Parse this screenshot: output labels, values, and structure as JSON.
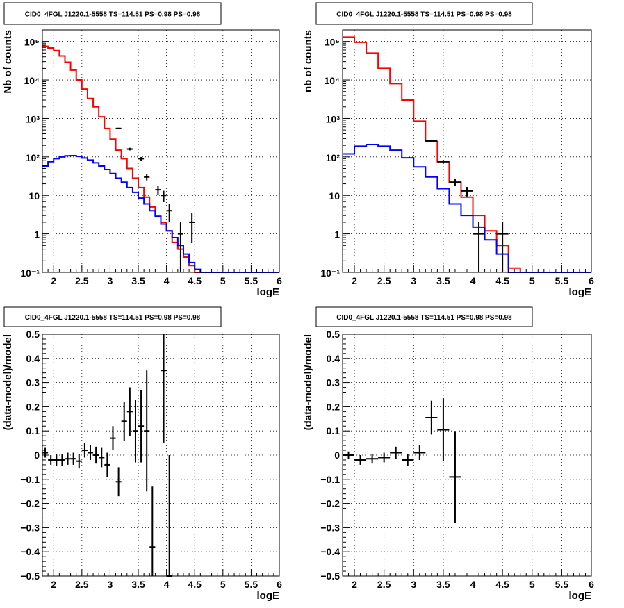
{
  "chart_data": [
    {
      "type": "line",
      "title": "CID0_4FGL J1220.1-5558 TS=114.51 PS=0.98 PS=0.98",
      "xlabel": "logE",
      "ylabel": "Nb of counts",
      "xlim": [
        1.8,
        6.0
      ],
      "ylim": [
        0.1,
        200000
      ],
      "log_y": true,
      "grid": true,
      "x_ticks": [
        "2",
        "2.5",
        "3",
        "3.5",
        "4",
        "4.5",
        "5",
        "5.5",
        "6"
      ],
      "y_ticks": [
        "10⁻¹",
        "1",
        "10",
        "10²",
        "10³",
        "10⁴",
        "10⁵"
      ],
      "series": [
        {
          "kind": "step",
          "color": "#ff0000",
          "edges": [
            1.8,
            1.9,
            2.0,
            2.1,
            2.2,
            2.3,
            2.4,
            2.5,
            2.6,
            2.7,
            2.8,
            2.9,
            3.0,
            3.1,
            3.2,
            3.3,
            3.4,
            3.5,
            3.6,
            3.7,
            3.8,
            3.9,
            4.0,
            4.1,
            4.2,
            4.3,
            4.4,
            4.5,
            4.6,
            4.7,
            4.8,
            4.9,
            5.0,
            5.1,
            5.2,
            5.3,
            5.4,
            5.5,
            5.6,
            5.7,
            5.8,
            5.9,
            6.0
          ],
          "values": [
            75000,
            68000,
            58000,
            42000,
            29000,
            18000,
            10000,
            5800,
            3300,
            2000,
            1100,
            550,
            290,
            150,
            90,
            50,
            28,
            16,
            9,
            5,
            3,
            2,
            1.2,
            0.6,
            0.4,
            0.25,
            0.15,
            0.1,
            0.1,
            0.1,
            0.1,
            0.1,
            0.1,
            0.1,
            0.1,
            0.1,
            0.1,
            0.1,
            0.1,
            0.1,
            0.1,
            0.1
          ]
        },
        {
          "kind": "step",
          "color": "#0000ff",
          "edges": [
            1.8,
            1.9,
            2.0,
            2.1,
            2.2,
            2.3,
            2.4,
            2.5,
            2.6,
            2.7,
            2.8,
            2.9,
            3.0,
            3.1,
            3.2,
            3.3,
            3.4,
            3.5,
            3.6,
            3.7,
            3.8,
            3.9,
            4.0,
            4.1,
            4.2,
            4.3,
            4.4,
            4.5,
            4.6,
            4.7,
            4.8,
            4.9,
            5.0,
            5.1,
            5.2,
            5.3,
            5.4,
            5.5,
            5.6,
            5.7,
            5.8,
            5.9,
            6.0
          ],
          "values": [
            58,
            75,
            90,
            100,
            107,
            108,
            103,
            94,
            83,
            70,
            58,
            47,
            37,
            28,
            22,
            16,
            12,
            8.5,
            6,
            4,
            2.8,
            1.8,
            1.2,
            0.8,
            0.5,
            0.3,
            0.18,
            0.12,
            0.1,
            0.1,
            0.1,
            0.1,
            0.1,
            0.1,
            0.1,
            0.1,
            0.1,
            0.1,
            0.1,
            0.1,
            0.1,
            0.1
          ]
        },
        {
          "kind": "points",
          "color": "#000000",
          "x": [
            3.15,
            3.35,
            3.55,
            3.65,
            3.85,
            3.95,
            4.05,
            4.25,
            4.45
          ],
          "y": [
            550,
            160,
            90,
            30,
            14,
            10,
            4,
            1,
            2
          ],
          "x_err": 0.05
        }
      ]
    },
    {
      "type": "line",
      "title": "CID0_4FGL J1220.1-5558 TS=114.51 PS=0.98 PS=0.98",
      "xlabel": "logE",
      "ylabel": "nb of counts",
      "xlim": [
        1.8,
        6.0
      ],
      "ylim": [
        0.1,
        200000
      ],
      "log_y": true,
      "grid": true,
      "x_ticks": [
        "2",
        "2.5",
        "3",
        "3.5",
        "4",
        "4.5",
        "5",
        "5.5",
        "6"
      ],
      "y_ticks": [
        "10⁻¹",
        "1",
        "10",
        "10²",
        "10³",
        "10⁴",
        "10⁵"
      ],
      "series": [
        {
          "kind": "step",
          "color": "#ff0000",
          "edges": [
            1.8,
            2.0,
            2.2,
            2.4,
            2.6,
            2.8,
            3.0,
            3.2,
            3.4,
            3.6,
            3.8,
            4.0,
            4.2,
            4.4,
            4.6,
            4.8,
            5.0,
            5.2,
            5.4,
            5.6,
            5.8,
            6.0
          ],
          "values": [
            130000,
            95000,
            50000,
            20000,
            8000,
            3000,
            850,
            250,
            75,
            22,
            9,
            3,
            1.2,
            0.5,
            0.13,
            0.1,
            0.1,
            0.1,
            0.1,
            0.1,
            0.1
          ]
        },
        {
          "kind": "step",
          "color": "#0000ff",
          "edges": [
            1.8,
            2.0,
            2.2,
            2.4,
            2.6,
            2.8,
            3.0,
            3.2,
            3.4,
            3.6,
            3.8,
            4.0,
            4.2,
            4.4,
            4.6,
            4.8,
            5.0,
            5.2,
            5.4,
            5.6,
            5.8,
            6.0
          ],
          "values": [
            120,
            190,
            210,
            190,
            150,
            95,
            55,
            30,
            15,
            6,
            3,
            1.5,
            0.7,
            0.3,
            0.1,
            0.1,
            0.1,
            0.1,
            0.1,
            0.1,
            0.1
          ]
        },
        {
          "kind": "points",
          "color": "#000000",
          "x": [
            3.3,
            3.5,
            3.7,
            3.9,
            4.1,
            4.5
          ],
          "y": [
            260,
            75,
            22,
            13,
            1,
            1
          ],
          "x_err": 0.1
        }
      ]
    },
    {
      "type": "scatter",
      "title": "CID0_4FGL J1220.1-5558 TS=114.51 PS=0.98 PS=0.98",
      "xlabel": "logE",
      "ylabel": "(data-model)/model",
      "xlim": [
        1.8,
        6.0
      ],
      "ylim": [
        -0.5,
        0.5
      ],
      "grid": true,
      "x_ticks": [
        "2",
        "2.5",
        "3",
        "3.5",
        "4",
        "4.5",
        "5",
        "5.5",
        "6"
      ],
      "y_ticks": [
        "−0.5",
        "−0.4",
        "−0.3",
        "−0.2",
        "−0.1",
        "0",
        "0.1",
        "0.2",
        "0.3",
        "0.4",
        "0.5"
      ],
      "series": [
        {
          "kind": "points",
          "color": "#000000",
          "x": [
            1.85,
            1.95,
            2.05,
            2.15,
            2.25,
            2.35,
            2.45,
            2.55,
            2.65,
            2.75,
            2.85,
            2.95,
            3.05,
            3.15,
            3.25,
            3.35,
            3.45,
            3.55,
            3.65,
            3.75,
            3.95,
            4.05
          ],
          "y": [
            0.01,
            -0.02,
            -0.02,
            -0.02,
            -0.015,
            -0.015,
            -0.025,
            0.02,
            0.01,
            0.0,
            -0.01,
            -0.04,
            0.07,
            -0.11,
            0.14,
            0.18,
            0.1,
            0.12,
            0.1,
            -0.38,
            0.35,
            -0.5
          ],
          "err": [
            0.02,
            0.02,
            0.025,
            0.025,
            0.025,
            0.025,
            0.03,
            0.03,
            0.03,
            0.035,
            0.04,
            0.05,
            0.05,
            0.06,
            0.08,
            0.1,
            0.13,
            0.15,
            0.25,
            0.25,
            0.3,
            0.5
          ],
          "x_err": 0.05
        }
      ]
    },
    {
      "type": "scatter",
      "title": "CID0_4FGL J1220.1-5558 TS=114.51 PS=0.98 PS=0.98",
      "xlabel": "logE",
      "ylabel": "(data-model)/model",
      "xlim": [
        1.8,
        6.0
      ],
      "ylim": [
        -0.5,
        0.5
      ],
      "grid": true,
      "x_ticks": [
        "2",
        "2.5",
        "3",
        "3.5",
        "4",
        "4.5",
        "5",
        "5.5",
        "6"
      ],
      "y_ticks": [
        "−0.5",
        "−0.4",
        "−0.3",
        "−0.2",
        "−0.1",
        "0",
        "0.1",
        "0.2",
        "0.3",
        "0.4",
        "0.5"
      ],
      "series": [
        {
          "kind": "points",
          "color": "#000000",
          "x": [
            1.9,
            2.1,
            2.3,
            2.5,
            2.7,
            2.9,
            3.1,
            3.3,
            3.5,
            3.7
          ],
          "y": [
            0.0,
            -0.02,
            -0.015,
            -0.01,
            0.01,
            -0.02,
            0.01,
            0.155,
            0.105,
            -0.09
          ],
          "err": [
            0.015,
            0.02,
            0.02,
            0.02,
            0.025,
            0.025,
            0.03,
            0.07,
            0.13,
            0.19
          ],
          "x_err": 0.1
        }
      ]
    }
  ]
}
